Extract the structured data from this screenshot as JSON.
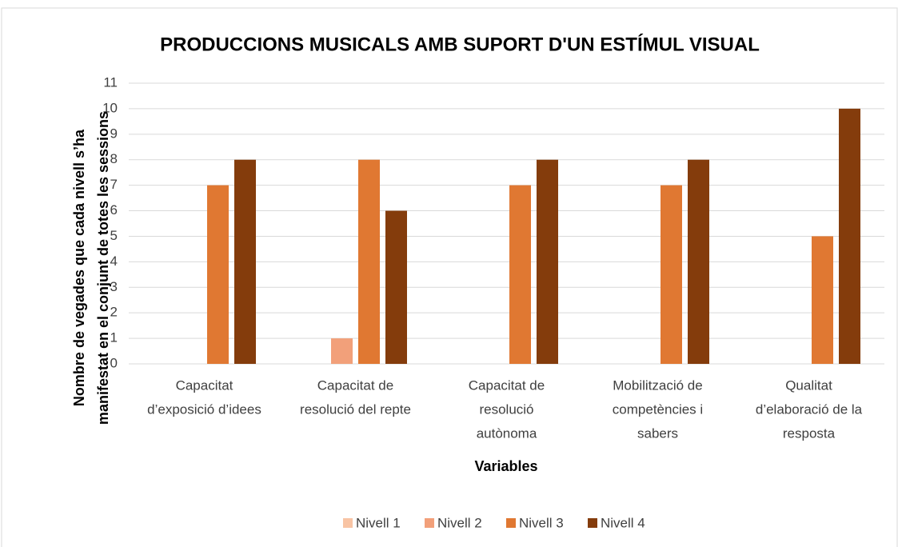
{
  "chart_data": {
    "type": "bar",
    "title": "PRODUCCIONS MUSICALS AMB SUPORT D'UN ESTÍMUL VISUAL",
    "x_label": "Variables",
    "y_label": [
      "Nombre de vegades que cada nivell s’ha",
      "manifestat en el conjunt de totes les sessions"
    ],
    "categories": [
      [
        "Capacitat",
        "d’exposició d’idees"
      ],
      [
        "Capacitat de",
        "resolució del repte"
      ],
      [
        "Capacitat de",
        "resolució",
        "autònoma"
      ],
      [
        "Mobilització de",
        "competències i",
        "sabers"
      ],
      [
        "Qualitat",
        "d’elaboració de la",
        "resposta"
      ]
    ],
    "series": [
      {
        "name": "Nivell 1",
        "color": "#f8c4a4",
        "values": [
          0,
          0,
          0,
          0,
          0
        ]
      },
      {
        "name": "Nivell 2",
        "color": "#f2a07a",
        "values": [
          0,
          1,
          0,
          0,
          0
        ]
      },
      {
        "name": "Nivell 3",
        "color": "#e07832",
        "values": [
          7,
          8,
          7,
          7,
          5
        ]
      },
      {
        "name": "Nivell 4",
        "color": "#843c0c",
        "values": [
          8,
          6,
          8,
          8,
          10
        ]
      }
    ],
    "ylim": [
      0,
      11
    ],
    "yticks": [
      0,
      1,
      2,
      3,
      4,
      5,
      6,
      7,
      8,
      9,
      10,
      11
    ],
    "grid": true,
    "legend": "bottom"
  }
}
